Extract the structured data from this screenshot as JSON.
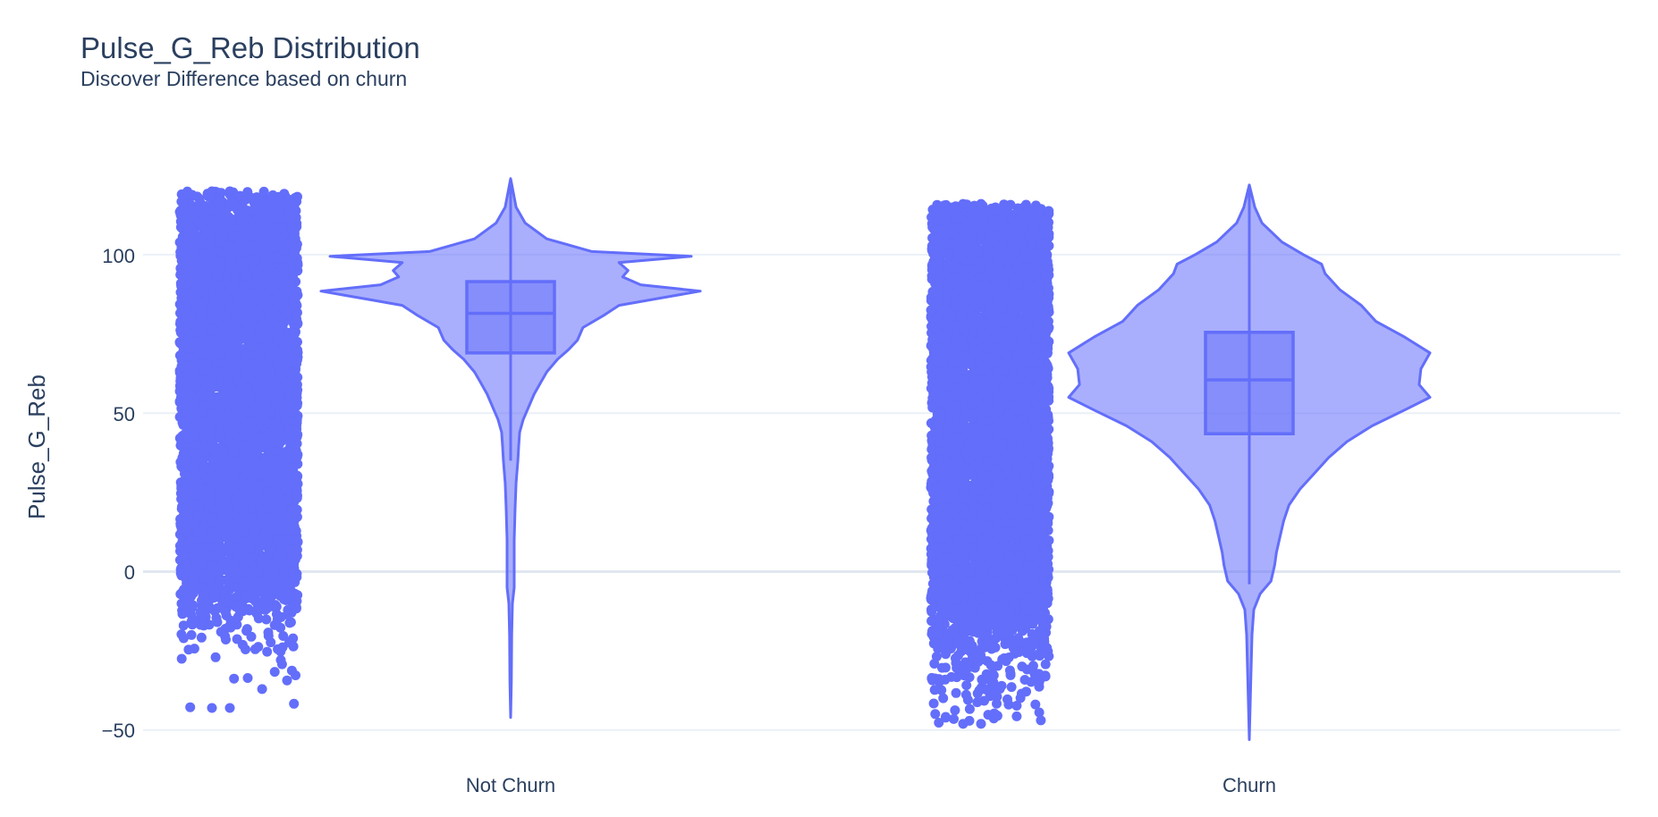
{
  "chart_data": {
    "type": "violin",
    "title": "Pulse_G_Reb Distribution",
    "subtitle": "Discover Difference based on churn",
    "ylabel": "Pulse_G_Reb",
    "xlabel": "",
    "ylim": [
      -53,
      122
    ],
    "yticks": [
      100,
      50,
      0,
      -50
    ],
    "ytick_labels": [
      "100",
      "50",
      "0",
      "−50"
    ],
    "grid": true,
    "color": "#636efa",
    "categories": [
      "Not Churn",
      "Churn"
    ],
    "series": [
      {
        "category": "Not Churn",
        "box": {
          "q1": 69,
          "median": 81.5,
          "q3": 91.5,
          "lower_whisker": 35,
          "upper_whisker": 124,
          "min": -46
        },
        "points_range": [
          -43,
          120
        ],
        "violin_profile": [
          [
            124,
            0
          ],
          [
            115,
            0.03
          ],
          [
            110,
            0.08
          ],
          [
            105,
            0.2
          ],
          [
            101,
            0.45
          ],
          [
            99.5,
            1.0
          ],
          [
            97.5,
            0.6
          ],
          [
            95,
            0.65
          ],
          [
            93,
            0.62
          ],
          [
            90.5,
            0.72
          ],
          [
            88.5,
            1.05
          ],
          [
            86,
            0.8
          ],
          [
            84,
            0.6
          ],
          [
            81,
            0.52
          ],
          [
            77,
            0.4
          ],
          [
            73,
            0.37
          ],
          [
            70,
            0.32
          ],
          [
            67,
            0.26
          ],
          [
            63,
            0.2
          ],
          [
            60,
            0.17
          ],
          [
            56,
            0.13
          ],
          [
            52,
            0.1
          ],
          [
            48,
            0.07
          ],
          [
            44,
            0.05
          ],
          [
            40,
            0.045
          ],
          [
            35,
            0.04
          ],
          [
            28,
            0.03
          ],
          [
            20,
            0.025
          ],
          [
            10,
            0.02
          ],
          [
            2,
            0.02
          ],
          [
            -5,
            0.02
          ],
          [
            -10,
            0.01
          ],
          [
            -20,
            0.006
          ],
          [
            -35,
            0.004
          ],
          [
            -46,
            0
          ]
        ],
        "points_jitter_density": [
          [
            120,
            0.3
          ],
          [
            110,
            1
          ],
          [
            100,
            1
          ],
          [
            50,
            1
          ],
          [
            10,
            1
          ],
          [
            0,
            0.9
          ],
          [
            -5,
            0.6
          ],
          [
            -10,
            0.3
          ],
          [
            -15,
            0.15
          ],
          [
            -25,
            0.08
          ],
          [
            -30,
            0.03
          ],
          [
            -43,
            0.01
          ]
        ]
      },
      {
        "category": "Churn",
        "box": {
          "q1": 43.5,
          "median": 60.5,
          "q3": 75.5,
          "lower_whisker": -4,
          "upper_whisker": 122,
          "min": -53
        },
        "points_range": [
          -48,
          116
        ],
        "violin_profile": [
          [
            122,
            0
          ],
          [
            115,
            0.03
          ],
          [
            110,
            0.07
          ],
          [
            104,
            0.18
          ],
          [
            100,
            0.3
          ],
          [
            97,
            0.4
          ],
          [
            94,
            0.42
          ],
          [
            89,
            0.5
          ],
          [
            84,
            0.62
          ],
          [
            79,
            0.7
          ],
          [
            74,
            0.86
          ],
          [
            69,
            1.0
          ],
          [
            64,
            0.95
          ],
          [
            59,
            0.94
          ],
          [
            55,
            1.0
          ],
          [
            51,
            0.86
          ],
          [
            46,
            0.68
          ],
          [
            41,
            0.54
          ],
          [
            36,
            0.44
          ],
          [
            31,
            0.36
          ],
          [
            26,
            0.28
          ],
          [
            21,
            0.22
          ],
          [
            16,
            0.19
          ],
          [
            11,
            0.17
          ],
          [
            6,
            0.15
          ],
          [
            2,
            0.14
          ],
          [
            -3,
            0.12
          ],
          [
            -7,
            0.06
          ],
          [
            -12,
            0.025
          ],
          [
            -20,
            0.015
          ],
          [
            -35,
            0.008
          ],
          [
            -53,
            0
          ]
        ],
        "points_jitter_density": [
          [
            116,
            0.3
          ],
          [
            110,
            1
          ],
          [
            100,
            1
          ],
          [
            50,
            1
          ],
          [
            0,
            1
          ],
          [
            -10,
            0.9
          ],
          [
            -18,
            0.6
          ],
          [
            -25,
            0.35
          ],
          [
            -32,
            0.2
          ],
          [
            -40,
            0.1
          ],
          [
            -48,
            0.08
          ]
        ]
      }
    ]
  }
}
